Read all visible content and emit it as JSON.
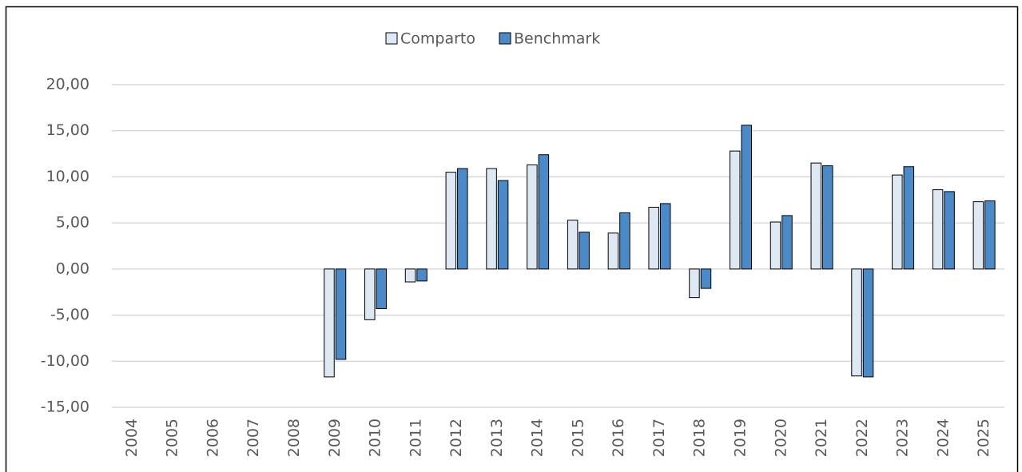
{
  "chart_data": {
    "type": "bar",
    "categories": [
      "2004",
      "2005",
      "2006",
      "2007",
      "2008",
      "2009",
      "2010",
      "2011",
      "2012",
      "2013",
      "2014",
      "2015",
      "2016",
      "2017",
      "2018",
      "2019",
      "2020",
      "2021",
      "2022",
      "2023",
      "2024",
      "2025"
    ],
    "series": [
      {
        "name": "Comparto",
        "color": "#dde8f3",
        "values": [
          null,
          null,
          null,
          null,
          null,
          -11.7,
          -5.5,
          -1.4,
          10.5,
          10.9,
          11.3,
          5.3,
          3.9,
          6.7,
          -3.1,
          12.8,
          5.1,
          11.5,
          -11.6,
          10.2,
          8.6,
          7.3
        ]
      },
      {
        "name": "Benchmark",
        "color": "#4a8ac8",
        "values": [
          null,
          null,
          null,
          null,
          null,
          -9.8,
          -4.3,
          -1.3,
          10.9,
          9.6,
          12.4,
          4.0,
          6.1,
          7.1,
          -2.1,
          15.6,
          5.8,
          11.2,
          -11.7,
          11.1,
          8.4,
          7.4
        ]
      }
    ],
    "ylim": [
      -15,
      20
    ],
    "yticks": [
      {
        "value": -15,
        "label": "-15,00"
      },
      {
        "value": -10,
        "label": "-10,00"
      },
      {
        "value": -5,
        "label": "-5,00"
      },
      {
        "value": 0,
        "label": "0,00"
      },
      {
        "value": 5,
        "label": "5,00"
      },
      {
        "value": 10,
        "label": "10,00"
      },
      {
        "value": 15,
        "label": "15,00"
      },
      {
        "value": 20,
        "label": "20,00"
      }
    ],
    "grid": true,
    "legend": "top"
  }
}
